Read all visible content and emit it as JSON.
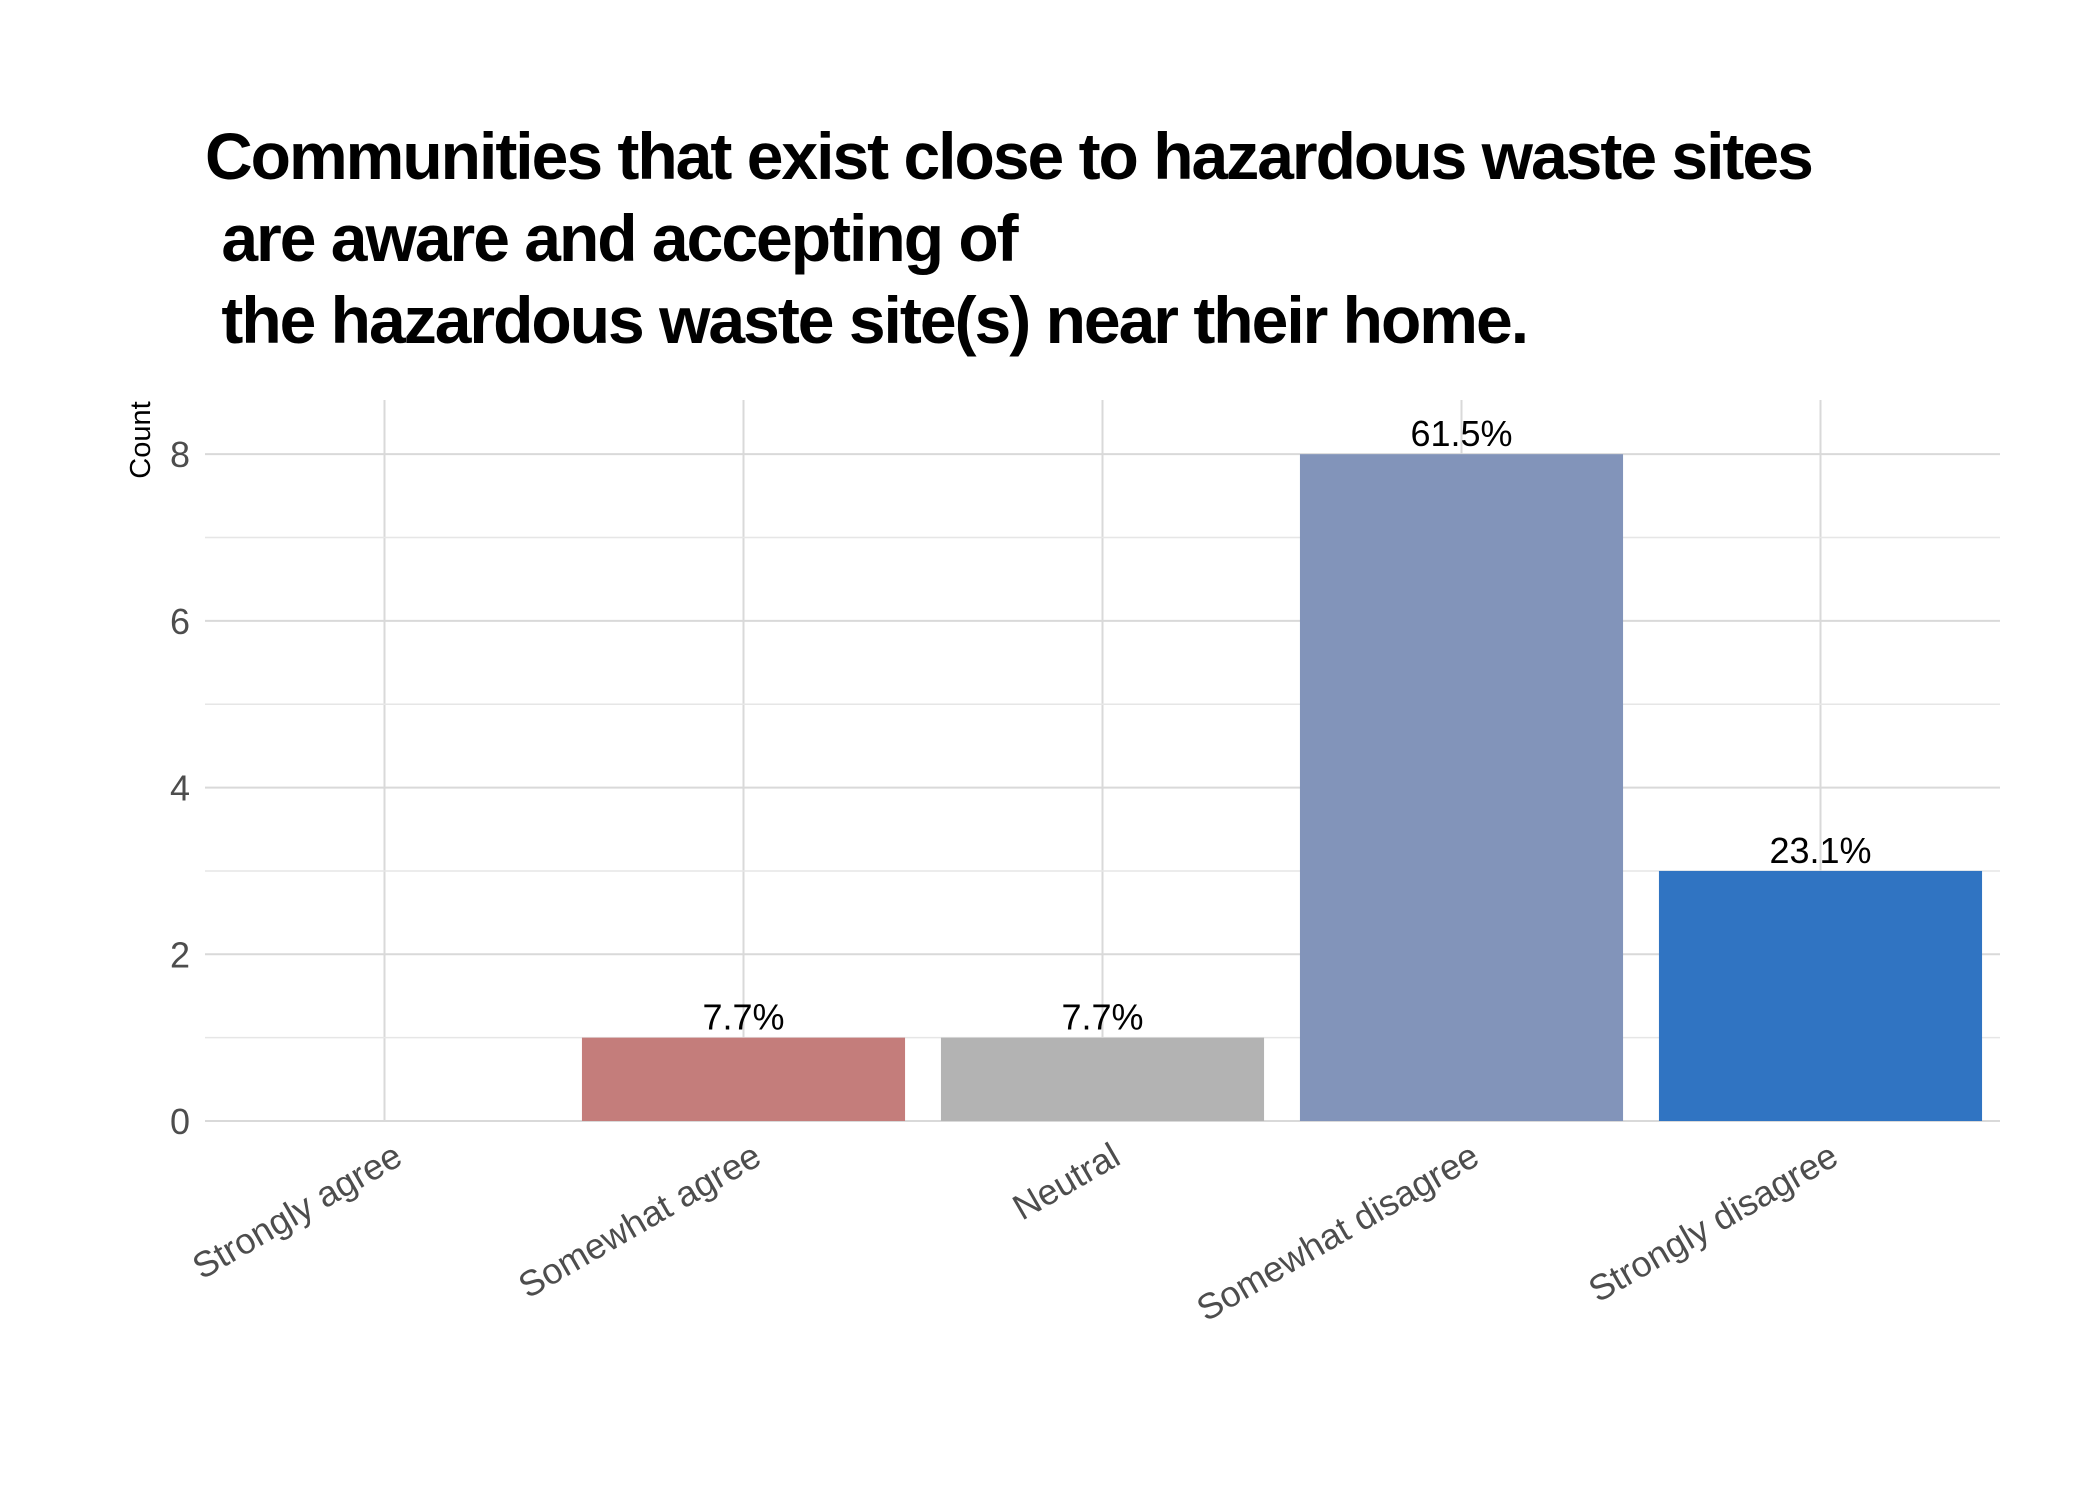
{
  "chart_data": {
    "type": "bar",
    "title_lines": [
      "Communities that exist close to hazardous waste sites",
      " are aware and accepting of",
      " the hazardous waste site(s) near their home."
    ],
    "xlabel": "",
    "ylabel": "Count",
    "categories": [
      "Strongly agree",
      "Somewhat agree",
      "Neutral",
      "Somewhat disagree",
      "Strongly disagree"
    ],
    "values": [
      0,
      1,
      1,
      8,
      3
    ],
    "data_labels": [
      "",
      "7.7%",
      "7.7%",
      "61.5%",
      "23.1%"
    ],
    "colors": [
      "#C47D7B",
      "#C47D7B",
      "#B3B3B3",
      "#8294BA",
      "#3074C2"
    ],
    "y_ticks": [
      "0",
      "2",
      "4",
      "6",
      "8"
    ],
    "ylim": [
      0,
      8.65
    ],
    "grid": true,
    "legend": "none"
  }
}
